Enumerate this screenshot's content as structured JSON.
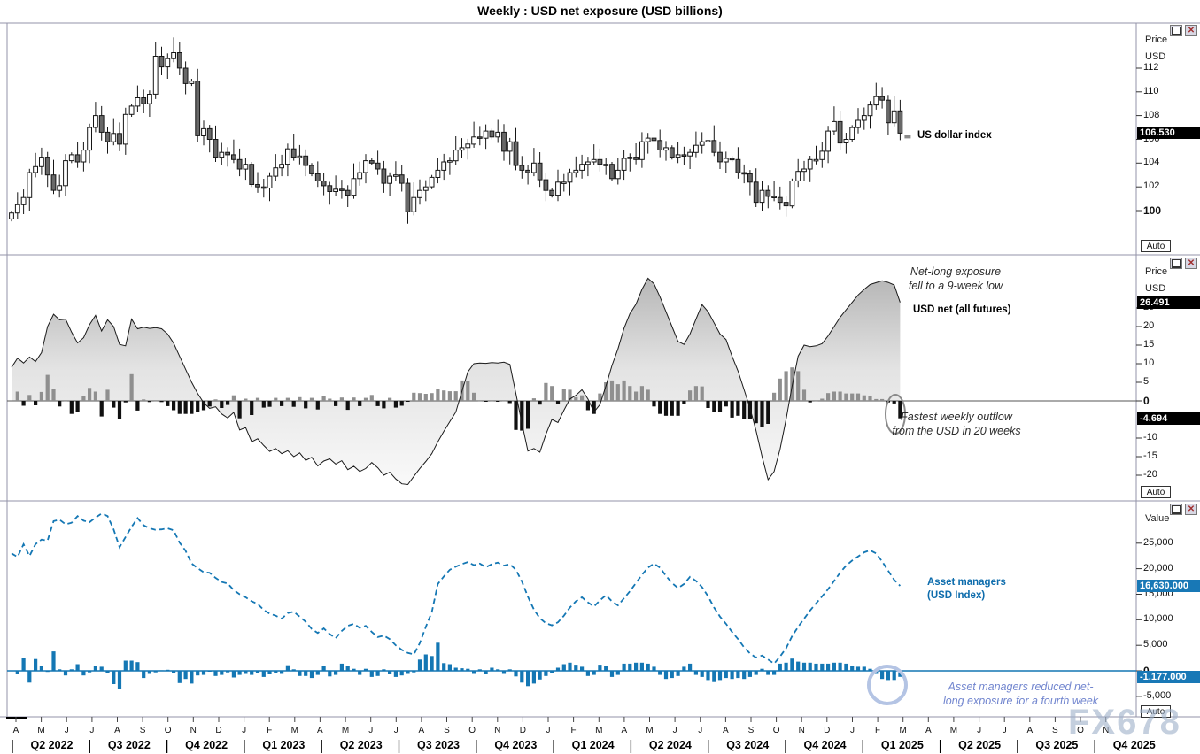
{
  "title": "Weekly : USD net exposure (USD billions)",
  "watermark": "FX678",
  "colors": {
    "blue_series": "#1477b4",
    "blue_label_bg": "#1878b6",
    "blue_text": "#0d6cac",
    "periwinkle": "#7286cf",
    "circle_blue": "#b4c4e4",
    "candle_down_fill": "#686868",
    "candle_stroke": "#161616",
    "bar_positive": "#8f8f8f",
    "bar_negative": "#101010",
    "border": "#9393a9",
    "label_black_bg": "#000000"
  },
  "x_axis": {
    "months": [
      "A",
      "M",
      "J",
      "J",
      "A",
      "S",
      "O",
      "N",
      "D",
      "J",
      "F",
      "M",
      "A",
      "M",
      "J",
      "J",
      "A",
      "S",
      "O",
      "N",
      "D",
      "J",
      "F",
      "M",
      "A",
      "M",
      "J",
      "J",
      "A",
      "S",
      "O",
      "N",
      "D",
      "J",
      "F",
      "M",
      "A",
      "M",
      "J",
      "J",
      "A",
      "S",
      "O",
      "N"
    ],
    "quarters": [
      "Q2 2022",
      "Q3 2022",
      "Q4 2022",
      "Q1 2023",
      "Q2 2023",
      "Q3 2023",
      "Q4 2023",
      "Q1 2024",
      "Q2 2024",
      "Q3 2024",
      "Q4 2024",
      "Q1 2025",
      "Q2 2025",
      "Q3 2025",
      "Q4 2025"
    ]
  },
  "panels": [
    {
      "name": "us-dollar-index",
      "axis_header": [
        "Price",
        "USD"
      ],
      "ticks": [
        {
          "label": "112",
          "value": 112
        },
        {
          "label": "110",
          "value": 110
        },
        {
          "label": "108",
          "value": 108
        },
        {
          "label": "106",
          "value": 106
        },
        {
          "label": "104",
          "value": 104
        },
        {
          "label": "102",
          "value": 102
        },
        {
          "label": "100",
          "value": 100
        }
      ],
      "bold_tick": 100,
      "current_value_label": "106.530",
      "series_label": "US dollar index",
      "auto_button": "Auto"
    },
    {
      "name": "usd-net-all-futures",
      "axis_header": [
        "Price",
        "USD"
      ],
      "ticks": [
        {
          "label": "25",
          "value": 25
        },
        {
          "label": "20",
          "value": 20
        },
        {
          "label": "15",
          "value": 15
        },
        {
          "label": "10",
          "value": 10
        },
        {
          "label": "5",
          "value": 5
        },
        {
          "label": "0",
          "value": 0
        },
        {
          "label": "-10",
          "value": -10
        },
        {
          "label": "-15",
          "value": -15
        },
        {
          "label": "-20",
          "value": -20
        }
      ],
      "bold_tick": 0,
      "net_value_label": "26.491",
      "change_value_label": "-4.694",
      "series_label": "USD net (all futures)",
      "annotation_top": [
        "Net-long exposure",
        "fell to a 9-week low"
      ],
      "annotation_bottom": [
        "Fastest weekly outflow",
        "from the USD in 20 weeks"
      ],
      "auto_button": "Auto"
    },
    {
      "name": "asset-managers-usd-index",
      "axis_header": [
        "Value"
      ],
      "ticks": [
        {
          "label": "25,000",
          "value": 25000
        },
        {
          "label": "20,000",
          "value": 20000
        },
        {
          "label": "15,000",
          "value": 15000
        },
        {
          "label": "10,000",
          "value": 10000
        },
        {
          "label": "5,000",
          "value": 5000
        },
        {
          "label": "0",
          "value": 0
        },
        {
          "label": "-5,000",
          "value": -5000
        }
      ],
      "bold_tick": 0,
      "net_value_label": "16,630.000",
      "change_value_label": "-1,177.000",
      "series_label": [
        "Asset managers",
        "(USD Index)"
      ],
      "annotation_bottom": [
        "Asset managers reduced net-",
        "long exposure for a fourth week"
      ],
      "auto_button": "Auto"
    }
  ],
  "chart_data": [
    {
      "type": "candlestick",
      "title": "US dollar index",
      "frequency": "weekly",
      "x_range": "Apr 2022 - Feb 2025",
      "ylim": [
        97,
        115.5
      ],
      "last_close": 106.53,
      "closes": [
        99.8,
        100.5,
        101.1,
        103.2,
        103.7,
        104.5,
        103.0,
        101.7,
        102.1,
        104.2,
        104.7,
        104.1,
        105.1,
        107.0,
        108.0,
        106.6,
        105.8,
        106.5,
        105.6,
        108.1,
        108.8,
        109.5,
        109.0,
        109.8,
        113.0,
        112.1,
        112.8,
        113.3,
        112.0,
        110.7,
        110.9,
        106.3,
        106.9,
        106.0,
        104.5,
        104.9,
        104.7,
        104.3,
        103.5,
        103.9,
        102.2,
        102.0,
        101.9,
        102.9,
        103.6,
        103.9,
        105.2,
        104.5,
        104.6,
        103.8,
        103.1,
        102.5,
        102.1,
        101.6,
        101.8,
        101.7,
        101.3,
        102.7,
        103.2,
        104.2,
        104.0,
        103.5,
        102.3,
        102.9,
        103.0,
        102.3,
        99.9,
        101.1,
        101.7,
        102.0,
        102.8,
        103.4,
        104.1,
        104.2,
        105.1,
        105.3,
        105.6,
        106.2,
        106.1,
        106.7,
        106.2,
        106.6,
        105.0,
        105.8,
        103.8,
        103.4,
        103.2,
        104.0,
        102.6,
        101.7,
        101.3,
        102.4,
        102.4,
        103.2,
        103.4,
        103.9,
        104.1,
        104.3,
        103.9,
        103.9,
        102.7,
        103.4,
        104.4,
        104.5,
        104.3,
        105.8,
        106.1,
        105.9,
        105.1,
        105.3,
        104.5,
        104.7,
        104.6,
        104.9,
        105.5,
        105.8,
        105.9,
        104.9,
        104.1,
        104.4,
        104.3,
        103.2,
        103.1,
        102.4,
        100.7,
        101.7,
        101.2,
        101.1,
        100.7,
        100.4,
        102.5,
        103.3,
        103.5,
        104.3,
        104.3,
        105.0,
        106.7,
        107.5,
        105.7,
        106.0,
        107.0,
        107.6,
        108.0,
        108.9,
        109.6,
        109.3,
        107.4,
        108.4,
        106.53
      ]
    },
    {
      "type": "area",
      "title": "USD net (all futures)",
      "ylabel": "USD billions",
      "frequency": "weekly",
      "ylim": [
        -26,
        39
      ],
      "bars_note": "gray/black bars = weekly change in net exposure (diff of net series)",
      "last_net": 26.491,
      "last_change": -4.694,
      "net": [
        9.0,
        11.5,
        10.2,
        11.8,
        10.6,
        13.0,
        20.0,
        23.3,
        21.8,
        22.0,
        18.5,
        15.6,
        17.0,
        20.5,
        23.0,
        18.8,
        21.8,
        20.0,
        15.2,
        14.8,
        22.0,
        19.4,
        19.8,
        19.5,
        19.7,
        19.4,
        18.0,
        15.5,
        12.0,
        8.5,
        5.0,
        2.0,
        -0.5,
        -2.0,
        -1.6,
        -3.5,
        -4.6,
        -3.1,
        -7.8,
        -7.2,
        -11.0,
        -10.2,
        -12.0,
        -13.6,
        -12.8,
        -14.2,
        -13.4,
        -15.0,
        -14.0,
        -16.0,
        -15.2,
        -17.5,
        -16.2,
        -15.6,
        -17.0,
        -16.1,
        -18.5,
        -17.6,
        -19.0,
        -18.2,
        -16.6,
        -18.0,
        -20.0,
        -19.2,
        -21.0,
        -22.3,
        -22.5,
        -20.3,
        -18.2,
        -16.3,
        -14.2,
        -11.0,
        -8.2,
        -5.6,
        -3.0,
        2.5,
        7.8,
        10.0,
        10.2,
        10.1,
        10.3,
        10.2,
        10.4,
        9.8,
        2.0,
        -6.0,
        -13.5,
        -12.8,
        -13.8,
        -9.0,
        -5.0,
        -5.8,
        -2.5,
        0.5,
        1.5,
        3.0,
        0.5,
        -3.0,
        -1.0,
        4.0,
        9.5,
        14.0,
        19.5,
        23.5,
        26.0,
        30.0,
        33.0,
        31.5,
        28.0,
        24.0,
        20.0,
        16.0,
        15.2,
        18.0,
        22.0,
        25.9,
        24.0,
        21.0,
        18.0,
        16.5,
        12.0,
        8.0,
        3.0,
        -2.0,
        -8.0,
        -15.0,
        -21.2,
        -19.0,
        -13.0,
        -5.0,
        4.0,
        12.0,
        15.0,
        14.6,
        14.8,
        15.4,
        17.5,
        20.0,
        22.5,
        24.5,
        26.5,
        28.5,
        30.0,
        31.3,
        31.8,
        32.3,
        31.885,
        31.185,
        26.491
      ]
    },
    {
      "type": "line",
      "title": "Asset managers (USD Index)",
      "ylabel": "Value (contracts)",
      "frequency": "weekly",
      "ylim": [
        -8000,
        33000
      ],
      "line_style": "dashed",
      "bars_note": "blue bars = weekly change in net position (diff of net series)",
      "last_net": 16630,
      "last_change": -1177,
      "net": [
        23000,
        22300,
        24800,
        22500,
        24800,
        25700,
        25500,
        29300,
        29600,
        28700,
        29000,
        30300,
        29400,
        29100,
        30000,
        30800,
        30300,
        27700,
        24200,
        26200,
        28200,
        29900,
        28500,
        27900,
        27600,
        27700,
        27900,
        27500,
        25100,
        23500,
        21000,
        20100,
        19300,
        19200,
        18200,
        17400,
        17100,
        15800,
        15000,
        14400,
        13600,
        13100,
        11900,
        11200,
        10800,
        10200,
        11300,
        11600,
        10600,
        9600,
        8200,
        7400,
        8300,
        7200,
        6400,
        7800,
        8800,
        9200,
        8400,
        8800,
        7600,
        6600,
        6900,
        6200,
        5000,
        4100,
        3500,
        3200,
        5400,
        8600,
        11500,
        17000,
        18500,
        19800,
        20400,
        20900,
        21300,
        20700,
        21000,
        20300,
        20900,
        21200,
        20600,
        20900,
        19800,
        17500,
        14500,
        12000,
        10300,
        9300,
        8900,
        9500,
        10800,
        12400,
        13600,
        14400,
        13400,
        12600,
        13800,
        14800,
        13600,
        12800,
        14200,
        15600,
        17200,
        18800,
        20200,
        21000,
        20200,
        18600,
        17200,
        16200,
        17000,
        18400,
        17600,
        16400,
        14600,
        12400,
        10600,
        9200,
        7600,
        6200,
        4600,
        3400,
        2600,
        3000,
        2200,
        1400,
        2800,
        4400,
        6800,
        8600,
        10200,
        11800,
        13200,
        14600,
        16000,
        17600,
        19200,
        20600,
        21600,
        22400,
        23200,
        23600,
        23000,
        21400,
        19600,
        17807,
        16630
      ]
    }
  ]
}
